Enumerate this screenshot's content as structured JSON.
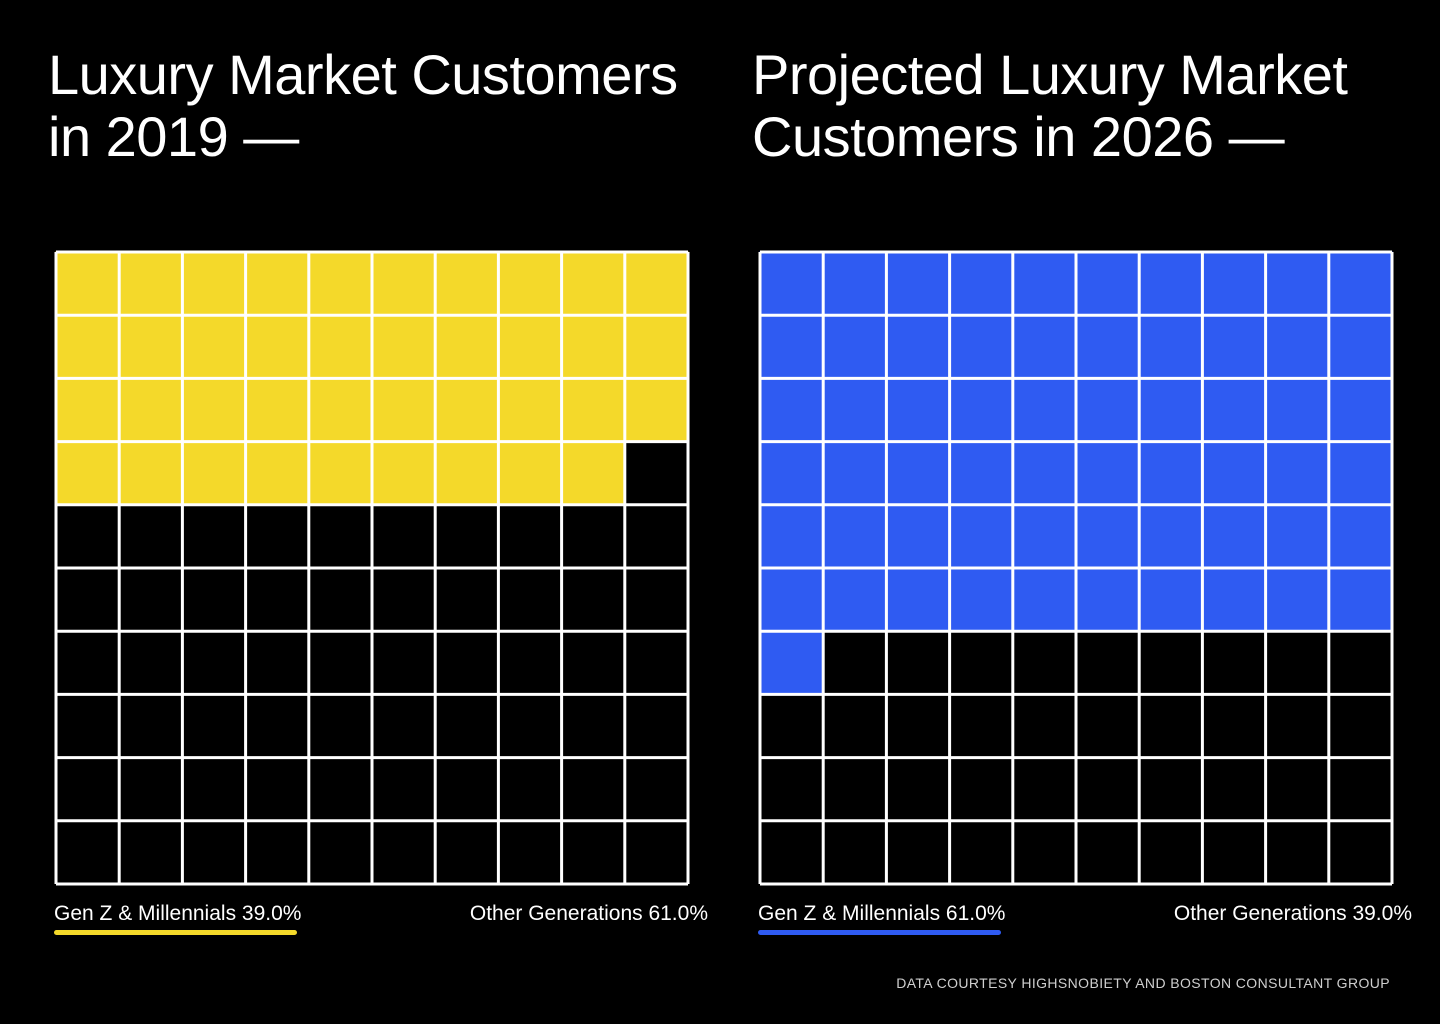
{
  "chart_data": [
    {
      "type": "waffle",
      "title": "Luxury Market Customers in 2019 —",
      "grid": {
        "rows": 10,
        "cols": 10
      },
      "series": [
        {
          "name": "Gen Z & Millennials",
          "value": 39.0,
          "label": "Gen Z & Millennials 39.0%",
          "color": "#f4d92a"
        },
        {
          "name": "Other Generations",
          "value": 61.0,
          "label": "Other Generations 61.0%"
        }
      ]
    },
    {
      "type": "waffle",
      "title": "Projected Luxury Market Customers in 2026 —",
      "grid": {
        "rows": 10,
        "cols": 10
      },
      "series": [
        {
          "name": "Gen Z & Millennials",
          "value": 61.0,
          "label": "Gen Z & Millennials 61.0%",
          "color": "#2f5bf2"
        },
        {
          "name": "Other Generations",
          "value": 39.0,
          "label": "Other Generations 39.0%"
        }
      ]
    }
  ],
  "credit": "DATA COURTESY HIGHSNOBIETY AND BOSTON CONSULTANT GROUP",
  "colors": {
    "background": "#000000",
    "grid_lines": "#ffffff",
    "text": "#ffffff"
  }
}
